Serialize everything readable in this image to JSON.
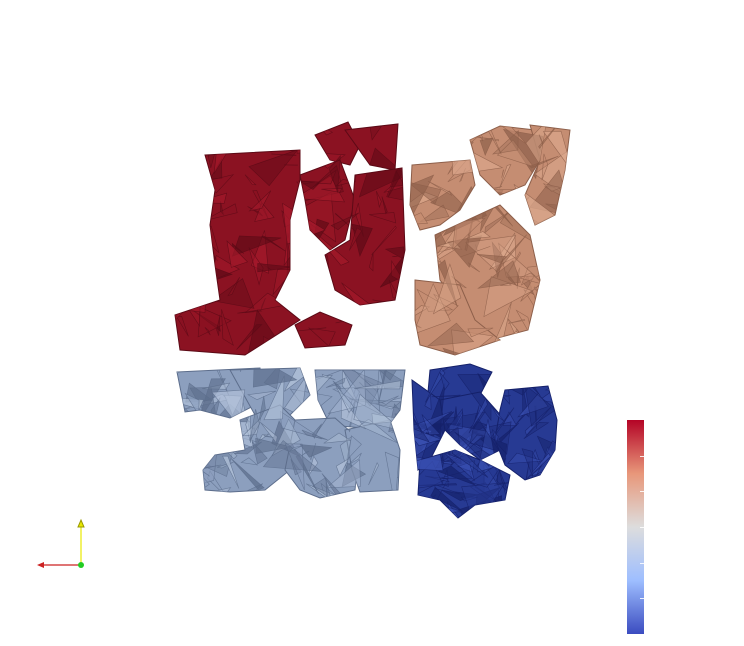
{
  "scene": {
    "background": "#ffffff",
    "objects": [
      {
        "name": "top-left-fragment-cluster",
        "color": "#8b1222",
        "shade": "#5c0a16",
        "hi": "#a81a2c"
      },
      {
        "name": "top-right-fragment-cluster",
        "color": "#c58d72",
        "shade": "#8d5f4a",
        "hi": "#ddaa8e"
      },
      {
        "name": "bottom-left-fragment-cluster",
        "color": "#8c9fbe",
        "shade": "#5d6e8c",
        "hi": "#b3c3da"
      },
      {
        "name": "bottom-right-fragment-cluster",
        "color": "#273a93",
        "shade": "#15216a",
        "hi": "#3b52b4"
      }
    ]
  },
  "orientation_axes": {
    "x_axis_color": "#cc2222",
    "y_axis_color": "#e8e800",
    "z_axis_color": "#22cc22",
    "icon": "orientation-axes-icon"
  },
  "colorbar": {
    "colormap": "Cool to Warm",
    "top_color": "#b40426",
    "mid_color": "#dddddd",
    "bottom_color": "#3b4cc0",
    "tick_count": 7
  }
}
